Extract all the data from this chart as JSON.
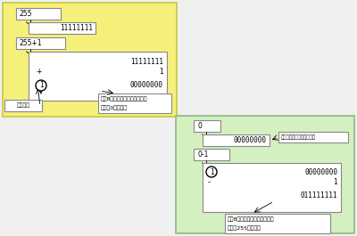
{
  "left_bg_color": "#f5f07a",
  "right_bg_color": "#d4f0c0",
  "fig_bg": "#f0f0f0",
  "left_panel": {
    "label1": "255",
    "bits1": "11111111",
    "label2": "255+1",
    "calc_top": "11111111",
    "calc_op": "+",
    "calc_operand": "1",
    "calc_result_circle": "1",
    "calc_result_rest": "00000000",
    "overflow_label": "桁あふれ",
    "annotation_line1": "この8ビットだけが保持される",
    "annotation_line2": "ため「0」となる"
  },
  "right_panel": {
    "label1": "0",
    "bits1": "00000000",
    "label2": "0-1",
    "calc_top_circle": "1",
    "calc_top_rest": "00000000",
    "calc_op": "-",
    "calc_operand": "1",
    "calc_result": "011111111",
    "borrow_note": "減算のため仮想の１を置く",
    "annotation_line1": "この8ビットだけが保持される",
    "annotation_line2": "ため「255」となる"
  }
}
